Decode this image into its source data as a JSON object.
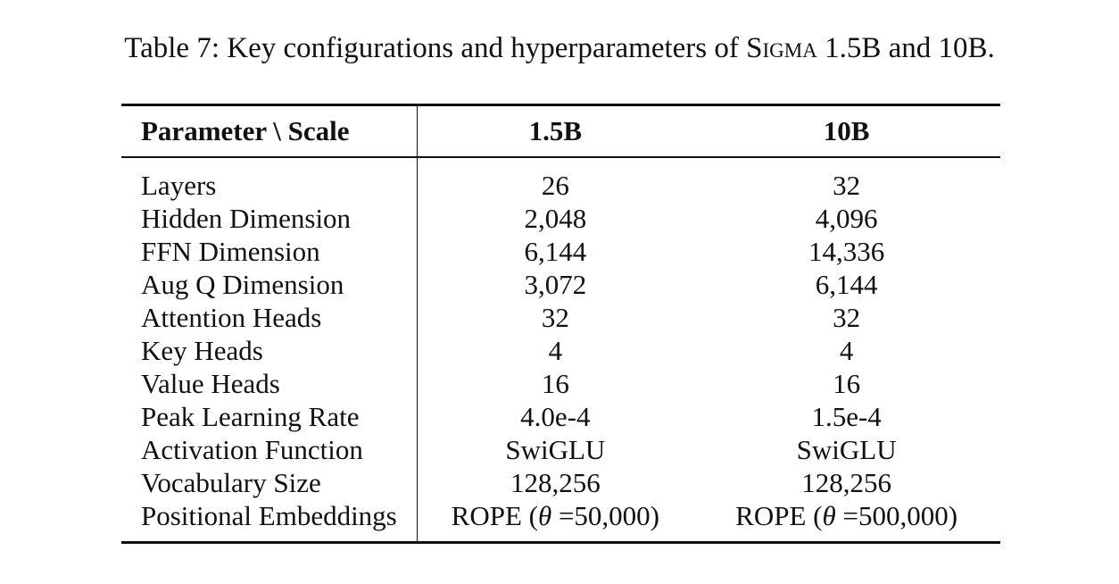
{
  "caption": {
    "prefix": "Table 7: Key configurations and hyperparameters of ",
    "model_name": "Sigma",
    "suffix": " 1.5B and 10B."
  },
  "table": {
    "headers": [
      "Parameter \\ Scale",
      "1.5B",
      "10B"
    ],
    "rows": [
      {
        "param": "Layers",
        "a": "26",
        "b": "32"
      },
      {
        "param": "Hidden Dimension",
        "a": "2,048",
        "b": "4,096"
      },
      {
        "param": "FFN Dimension",
        "a": "6,144",
        "b": "14,336"
      },
      {
        "param": "Aug Q Dimension",
        "a": "3,072",
        "b": "6,144"
      },
      {
        "param": "Attention Heads",
        "a": "32",
        "b": "32"
      },
      {
        "param": "Key Heads",
        "a": "4",
        "b": "4"
      },
      {
        "param": "Value Heads",
        "a": "16",
        "b": "16"
      },
      {
        "param": "Peak Learning Rate",
        "a": "4.0e-4",
        "b": "1.5e-4"
      },
      {
        "param": "Activation Function",
        "a": "SwiGLU",
        "b": "SwiGLU"
      },
      {
        "param": "Vocabulary Size",
        "a": "128,256",
        "b": "128,256"
      }
    ],
    "rope_row": {
      "param": "Positional Embeddings",
      "a_prefix": "ROPE (",
      "theta_symbol": "θ",
      "a_suffix": " =50,000)",
      "b_prefix": "ROPE (",
      "b_suffix": " =500,000)"
    }
  }
}
